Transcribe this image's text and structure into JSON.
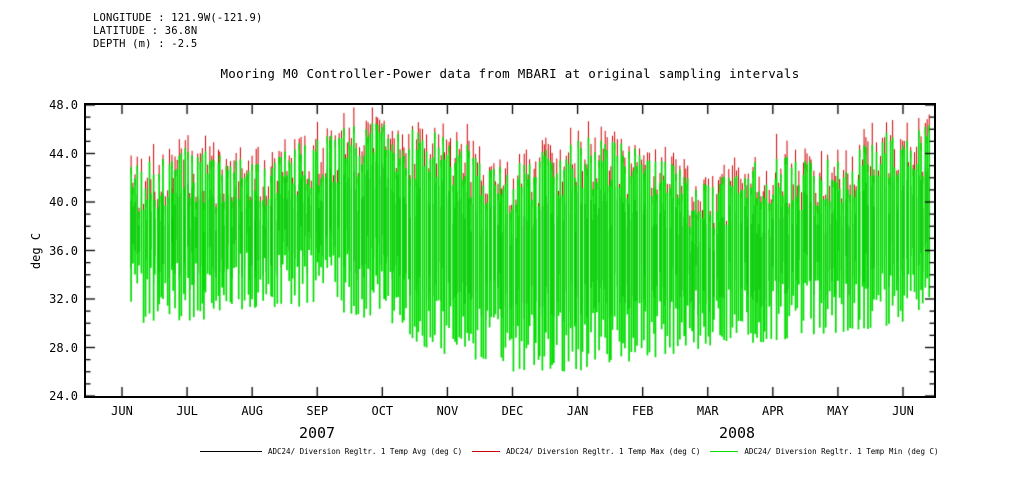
{
  "header": {
    "longitude": "LONGITUDE : 121.9W(-121.9)",
    "latitude": "LATITUDE : 36.8N",
    "depth": "DEPTH (m) : -2.5"
  },
  "title": "Mooring M0 Controller-Power data from MBARI at original sampling intervals",
  "chart_data": {
    "type": "line",
    "title": "Mooring M0 Controller-Power data from MBARI at original sampling intervals",
    "xlabel": "",
    "ylabel": "deg C",
    "ylim": [
      24.0,
      48.0
    ],
    "yticks": [
      "24.0",
      "28.0",
      "32.0",
      "36.0",
      "40.0",
      "44.0",
      "48.0"
    ],
    "y_minor_tick_interval": 1.0,
    "x_tick_labels": [
      "JUN",
      "JUL",
      "AUG",
      "SEP",
      "OCT",
      "NOV",
      "DEC",
      "JAN",
      "FEB",
      "MAR",
      "APR",
      "MAY",
      "JUN"
    ],
    "year_labels": [
      "2007",
      "2008"
    ],
    "grid": false,
    "legend_position": "bottom",
    "series": [
      {
        "name": "ADC24/ Diversion Regltr. 1 Temp Avg (deg C)",
        "color": "#000000"
      },
      {
        "name": "ADC24/ Diversion Regltr. 1 Temp Max (deg C)",
        "color": "#cc0000"
      },
      {
        "name": "ADC24/ Diversion Regltr. 1 Temp Min (deg C)",
        "color": "#00dd00"
      }
    ],
    "envelope_by_month": {
      "months": [
        "JUN 2007",
        "JUL 2007",
        "AUG 2007",
        "SEP 2007",
        "OCT 2007",
        "NOV 2007",
        "DEC 2007",
        "JAN 2008",
        "FEB 2008",
        "MAR 2008",
        "APR 2008",
        "MAY 2008",
        "JUN 2008"
      ],
      "daily_high_max": [
        43.0,
        44.5,
        43.5,
        45.5,
        47.0,
        45.5,
        43.0,
        45.5,
        44.5,
        41.5,
        44.0,
        43.5,
        46.5
      ],
      "daily_low_min": [
        30.0,
        30.0,
        31.0,
        31.5,
        30.0,
        27.0,
        26.0,
        26.0,
        27.0,
        28.0,
        28.5,
        29.0,
        30.0
      ],
      "approx_mean": [
        36.5,
        37.0,
        37.0,
        38.0,
        37.5,
        35.5,
        33.5,
        34.0,
        34.5,
        34.5,
        35.0,
        35.5,
        36.5
      ]
    }
  }
}
